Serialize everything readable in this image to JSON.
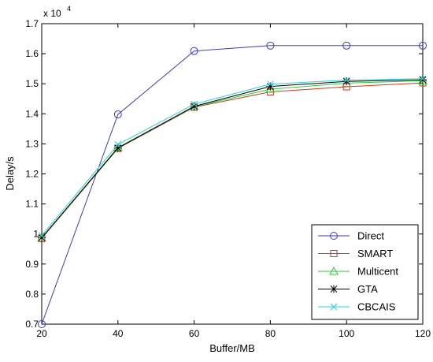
{
  "chart_data": {
    "type": "line",
    "xlabel": "Buffer/MB",
    "ylabel": "Delay/s",
    "y_exponent_label": "x 10",
    "y_exponent": "4",
    "x": [
      20,
      40,
      60,
      80,
      100,
      120
    ],
    "xlim": [
      20,
      120
    ],
    "ylim": [
      0.7,
      1.7
    ],
    "x_ticks": [
      "20",
      "40",
      "60",
      "80",
      "100",
      "120"
    ],
    "y_ticks": [
      "0.7",
      "0.8",
      "0.9",
      "1",
      "1.1",
      "1.2",
      "1.3",
      "1.4",
      "1.5",
      "1.6",
      "1.7"
    ],
    "grid": false,
    "legend_position": "bottom-right",
    "series": [
      {
        "name": "Direct",
        "color": "#3b3bc8",
        "marker": "circle",
        "values": [
          0.7,
          1.398,
          1.609,
          1.627,
          1.627,
          1.627
        ]
      },
      {
        "name": "SMART",
        "color": "#cc3a1e",
        "marker": "square",
        "values": [
          0.985,
          1.285,
          1.422,
          1.473,
          1.49,
          1.503
        ]
      },
      {
        "name": "Multicent",
        "color": "#2ecc2e",
        "marker": "triangle",
        "values": [
          0.987,
          1.288,
          1.424,
          1.482,
          1.502,
          1.51
        ]
      },
      {
        "name": "GTA",
        "color": "#000000",
        "marker": "star",
        "values": [
          0.988,
          1.286,
          1.425,
          1.491,
          1.508,
          1.513
        ]
      },
      {
        "name": "CBCAIS",
        "color": "#29d4e0",
        "marker": "x",
        "values": [
          0.995,
          1.298,
          1.432,
          1.499,
          1.512,
          1.517
        ]
      }
    ]
  }
}
